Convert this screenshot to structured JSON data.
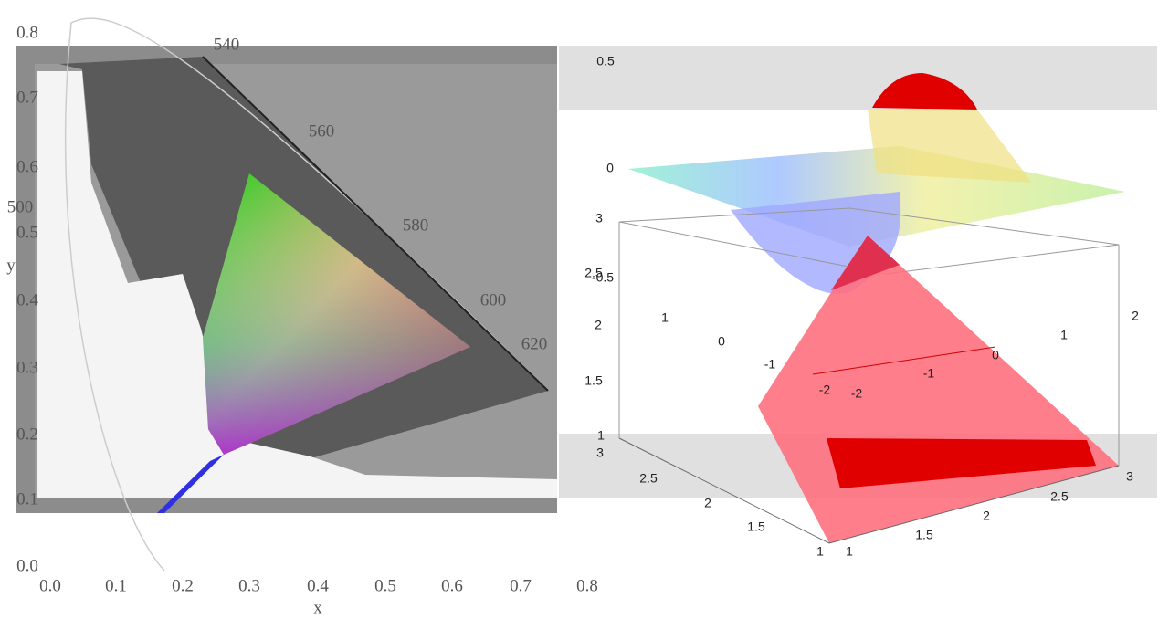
{
  "cie": {
    "yticks": [
      "0.8",
      "0.7",
      "0.6",
      "0.5",
      "0.4",
      "0.3",
      "0.2",
      "0.1",
      "0.0"
    ],
    "xticks": [
      "0.0",
      "0.1",
      "0.2",
      "0.3",
      "0.4",
      "0.5",
      "0.6",
      "0.7",
      "0.8"
    ],
    "xlabel": "x",
    "ylabel": "y",
    "wavelengths": [
      "540",
      "560",
      "580",
      "600",
      "620",
      "500"
    ]
  },
  "surface": {
    "zticks": [
      "0.5",
      "0",
      "-0.5"
    ],
    "yticks": [
      "1",
      "0",
      "-1",
      "-2"
    ],
    "xticks": [
      "-2",
      "-1",
      "0",
      "1",
      "2"
    ]
  },
  "pyramid": {
    "zticks": [
      "3",
      "2.5",
      "2",
      "1.5",
      "1"
    ],
    "yticks": [
      "3",
      "2.5",
      "2",
      "1.5",
      "1"
    ],
    "xticks": [
      "1",
      "1.5",
      "2",
      "2.5",
      "3"
    ]
  }
}
